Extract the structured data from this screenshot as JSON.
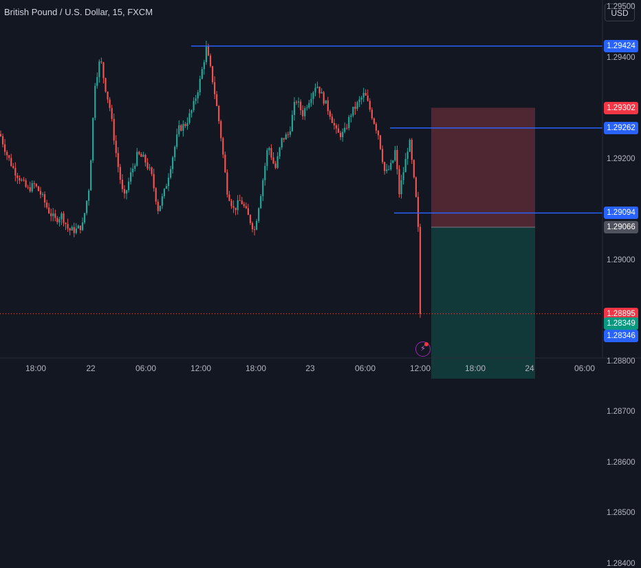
{
  "header": {
    "title": "British Pound / U.S. Dollar, 15, FXCM",
    "currency_label": "USD"
  },
  "colors": {
    "up": "#26a69a",
    "down": "#ef5350",
    "hline": "#2962ff",
    "stop_zone": "#5b2a35",
    "target_zone": "#133d3d"
  },
  "price_axis": {
    "ticks": [
      "1.29500",
      "1.29400",
      "1.29200",
      "1.29000",
      "1.28800",
      "1.28700",
      "1.28600",
      "1.28500",
      "1.28400"
    ],
    "labels": [
      {
        "name": "hline-1",
        "text": "1.29424",
        "kind": "blue"
      },
      {
        "name": "stop",
        "text": "1.29302",
        "kind": "red"
      },
      {
        "name": "hline-2",
        "text": "1.29262",
        "kind": "blue"
      },
      {
        "name": "hline-3",
        "text": "1.29094",
        "kind": "blue"
      },
      {
        "name": "entry",
        "text": "1.29066",
        "kind": "gray"
      },
      {
        "name": "last",
        "text": "1.28895",
        "kind": "lastred"
      },
      {
        "name": "target",
        "text": "1.28349",
        "kind": "green"
      },
      {
        "name": "hline-4",
        "text": "1.28346",
        "kind": "blue"
      }
    ]
  },
  "time_axis": {
    "ticks": [
      "18:00",
      "22",
      "06:00",
      "12:00",
      "18:00",
      "23",
      "06:00",
      "12:00",
      "18:00",
      "24",
      "06:00"
    ]
  },
  "chart_data": {
    "type": "candlestick",
    "title": "British Pound / U.S. Dollar, 15, FXCM",
    "symbol": "GBPUSD",
    "interval": "15",
    "source": "FXCM",
    "ylim": [
      1.2832,
      1.2952
    ],
    "y_ticks": [
      1.295,
      1.294,
      1.292,
      1.29,
      1.288,
      1.287,
      1.286,
      1.285,
      1.284
    ],
    "x_ticks": [
      "18:00",
      "22",
      "06:00",
      "12:00",
      "18:00",
      "23",
      "06:00",
      "12:00",
      "18:00",
      "24",
      "06:00"
    ],
    "last_price": 1.28895,
    "horizontal_lines": [
      1.29424,
      1.29262,
      1.29094,
      1.28346
    ],
    "position": {
      "type": "short",
      "entry": 1.29066,
      "stop": 1.29302,
      "target": 1.28349
    },
    "close_path": [
      [
        0,
        1.2925
      ],
      [
        10,
        1.2921
      ],
      [
        20,
        1.2918
      ],
      [
        30,
        1.2916
      ],
      [
        40,
        1.2914
      ],
      [
        50,
        1.2915
      ],
      [
        60,
        1.2913
      ],
      [
        70,
        1.291
      ],
      [
        80,
        1.2908
      ],
      [
        90,
        1.2909
      ],
      [
        100,
        1.2906
      ],
      [
        110,
        1.2906
      ],
      [
        120,
        1.2907
      ],
      [
        130,
        1.2915
      ],
      [
        138,
        1.2935
      ],
      [
        146,
        1.294
      ],
      [
        152,
        1.2935
      ],
      [
        160,
        1.293
      ],
      [
        170,
        1.292
      ],
      [
        180,
        1.2912
      ],
      [
        190,
        1.2917
      ],
      [
        200,
        1.2921
      ],
      [
        210,
        1.292
      ],
      [
        220,
        1.2917
      ],
      [
        230,
        1.291
      ],
      [
        240,
        1.2914
      ],
      [
        250,
        1.292
      ],
      [
        260,
        1.2926
      ],
      [
        270,
        1.2927
      ],
      [
        280,
        1.293
      ],
      [
        290,
        1.2935
      ],
      [
        300,
        1.2942
      ],
      [
        310,
        1.2935
      ],
      [
        320,
        1.2926
      ],
      [
        330,
        1.2914
      ],
      [
        340,
        1.291
      ],
      [
        350,
        1.2912
      ],
      [
        360,
        1.2909
      ],
      [
        370,
        1.2906
      ],
      [
        380,
        1.2914
      ],
      [
        390,
        1.2923
      ],
      [
        400,
        1.2918
      ],
      [
        410,
        1.2924
      ],
      [
        420,
        1.2925
      ],
      [
        430,
        1.2932
      ],
      [
        440,
        1.2929
      ],
      [
        450,
        1.2932
      ],
      [
        460,
        1.2935
      ],
      [
        470,
        1.2932
      ],
      [
        480,
        1.2929
      ],
      [
        490,
        1.2925
      ],
      [
        500,
        1.2925
      ],
      [
        510,
        1.2929
      ],
      [
        520,
        1.2931
      ],
      [
        530,
        1.2933
      ],
      [
        540,
        1.2929
      ],
      [
        550,
        1.2925
      ],
      [
        560,
        1.2917
      ],
      [
        570,
        1.2919
      ],
      [
        575,
        1.2922
      ],
      [
        580,
        1.2913
      ],
      [
        590,
        1.292
      ],
      [
        595,
        1.2924
      ],
      [
        600,
        1.2918
      ],
      [
        605,
        1.2912
      ],
      [
        610,
        1.2902
      ],
      [
        614,
        1.28895
      ]
    ]
  }
}
